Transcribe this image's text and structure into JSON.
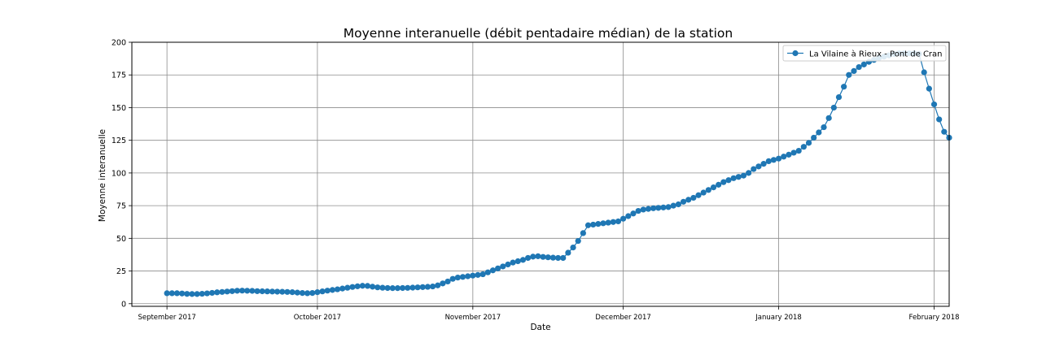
{
  "chart_data": {
    "type": "line",
    "title": "Moyenne interanuelle  (débit pentadaire médian) de la station",
    "xlabel": "Date",
    "ylabel": "Moyenne interanuelle",
    "x_range": [
      "2017-08-25",
      "2018-02-04"
    ],
    "ylim": [
      -2,
      200
    ],
    "grid": true,
    "legend_position": "top-right",
    "x_ticks": [
      {
        "date": "2017-09-01",
        "label": "September 2017"
      },
      {
        "date": "2017-10-01",
        "label": "October 2017"
      },
      {
        "date": "2017-11-01",
        "label": "November 2017"
      },
      {
        "date": "2017-12-01",
        "label": "December 2017"
      },
      {
        "date": "2018-01-01",
        "label": "January 2018"
      },
      {
        "date": "2018-02-01",
        "label": "February 2018"
      }
    ],
    "y_ticks": [
      0,
      25,
      50,
      75,
      100,
      125,
      150,
      175,
      200
    ],
    "series": [
      {
        "name": "La Vilaine à Rieux - Pont de Cran",
        "color": "#1f77b4",
        "start_date": "2017-09-01",
        "values": [
          8,
          8,
          8,
          7.8,
          7.5,
          7.4,
          7.4,
          7.6,
          7.9,
          8.3,
          8.7,
          9,
          9.3,
          9.6,
          9.9,
          10,
          9.9,
          9.8,
          9.6,
          9.5,
          9.4,
          9.3,
          9.2,
          9.1,
          9,
          8.8,
          8.5,
          8.2,
          8,
          8.2,
          8.8,
          9.4,
          10,
          10.5,
          11,
          11.6,
          12.2,
          12.8,
          13.3,
          13.7,
          13.6,
          13,
          12.5,
          12.2,
          12,
          11.9,
          11.9,
          12,
          12.1,
          12.3,
          12.5,
          12.7,
          12.9,
          13.2,
          14,
          15.5,
          17,
          19,
          20,
          20.5,
          21,
          21.5,
          22,
          22.5,
          24,
          25.5,
          27,
          28.5,
          30,
          31.5,
          32.5,
          33.5,
          35,
          36,
          36.3,
          35.8,
          35.5,
          35.2,
          35,
          35,
          39,
          43,
          48,
          54,
          60,
          60.5,
          61,
          61.5,
          62,
          62.5,
          63,
          65,
          67,
          69,
          71,
          72,
          72.5,
          73,
          73.3,
          73.6,
          73.9,
          75,
          76,
          78,
          79.5,
          81,
          83,
          85,
          87,
          89,
          91,
          93,
          94.5,
          96,
          97,
          98,
          100,
          103,
          105,
          107,
          109,
          110,
          111,
          112.5,
          114,
          115.5,
          117,
          120,
          123,
          127,
          131,
          135,
          142,
          150,
          158,
          166,
          175,
          178,
          181,
          183,
          185,
          186.5,
          188,
          189,
          190,
          191,
          191.5,
          191.5,
          191.5,
          191.5,
          191,
          177,
          164.5,
          152.5,
          141,
          131.5,
          127
        ]
      }
    ]
  }
}
